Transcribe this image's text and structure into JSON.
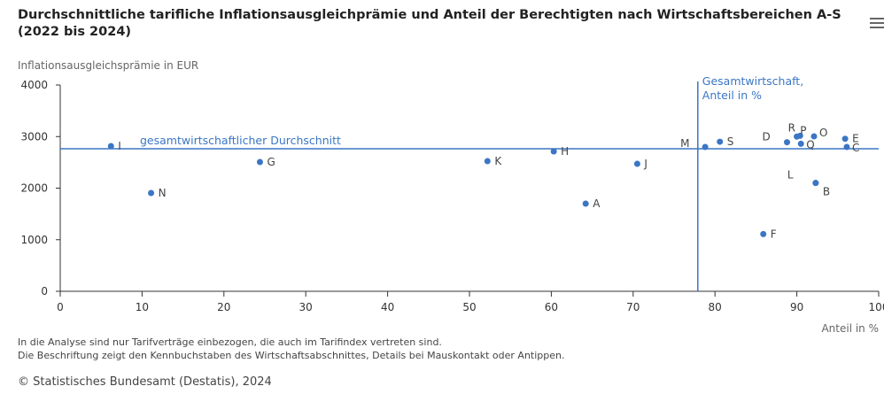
{
  "title": "Durchschnittliche tarifliche Inflationsausgleichprämie und Anteil der Berechtigten nach Wirtschaftsbereichen A-S (2022 bis 2024)",
  "notes": [
    "In die Analyse sind nur Tarifverträge einbezogen, die auch im Tarifindex vertreten sind.",
    "Die Beschriftung zeigt den Kennbuchstaben des Wirtschaftsabschnittes, Details bei Mauskontakt oder Antippen."
  ],
  "credit": "© Statistisches Bundesamt (Destatis), 2024",
  "chart_data": {
    "type": "scatter",
    "xlabel": "Anteil in %",
    "ylabel": "Inflationsausgleichsprämie in EUR",
    "xlim": [
      0,
      100
    ],
    "ylim": [
      0,
      4000
    ],
    "xticks": [
      0,
      10,
      20,
      30,
      40,
      50,
      60,
      70,
      80,
      90,
      100
    ],
    "yticks": [
      0,
      1000,
      2000,
      3000,
      4000
    ],
    "grid": false,
    "color": "#3a76c4",
    "points": [
      {
        "label": "I",
        "x": 6.2,
        "y": 2815
      },
      {
        "label": "N",
        "x": 11.1,
        "y": 1905
      },
      {
        "label": "G",
        "x": 24.4,
        "y": 2506
      },
      {
        "label": "K",
        "x": 52.2,
        "y": 2524
      },
      {
        "label": "H",
        "x": 60.3,
        "y": 2712
      },
      {
        "label": "A",
        "x": 64.2,
        "y": 1700
      },
      {
        "label": "J",
        "x": 70.5,
        "y": 2472
      },
      {
        "label": "M",
        "x": 78.8,
        "y": 2798
      },
      {
        "label": "S",
        "x": 80.6,
        "y": 2900
      },
      {
        "label": "D",
        "x": 88.8,
        "y": 2890
      },
      {
        "label": "R",
        "x": 90.0,
        "y": 3000
      },
      {
        "label": "P",
        "x": 90.4,
        "y": 3016
      },
      {
        "label": "Q",
        "x": 90.5,
        "y": 2861
      },
      {
        "label": "O",
        "x": 92.1,
        "y": 3004
      },
      {
        "label": "E",
        "x": 95.9,
        "y": 2958
      },
      {
        "label": "C",
        "x": 96.1,
        "y": 2798
      },
      {
        "label": "L",
        "x": 92.3,
        "y": 2100
      },
      {
        "label": "B",
        "x": 92.3,
        "y": 2100
      },
      {
        "label": "F",
        "x": 85.9,
        "y": 1110
      }
    ],
    "reference_lines": [
      {
        "orientation": "horizontal",
        "value": 2764,
        "label": "gesamtwirtschaftlicher Durchschnitt"
      },
      {
        "orientation": "vertical",
        "value": 77.9,
        "label": "Gesamtwirtschaft, Anteil in %"
      }
    ]
  }
}
